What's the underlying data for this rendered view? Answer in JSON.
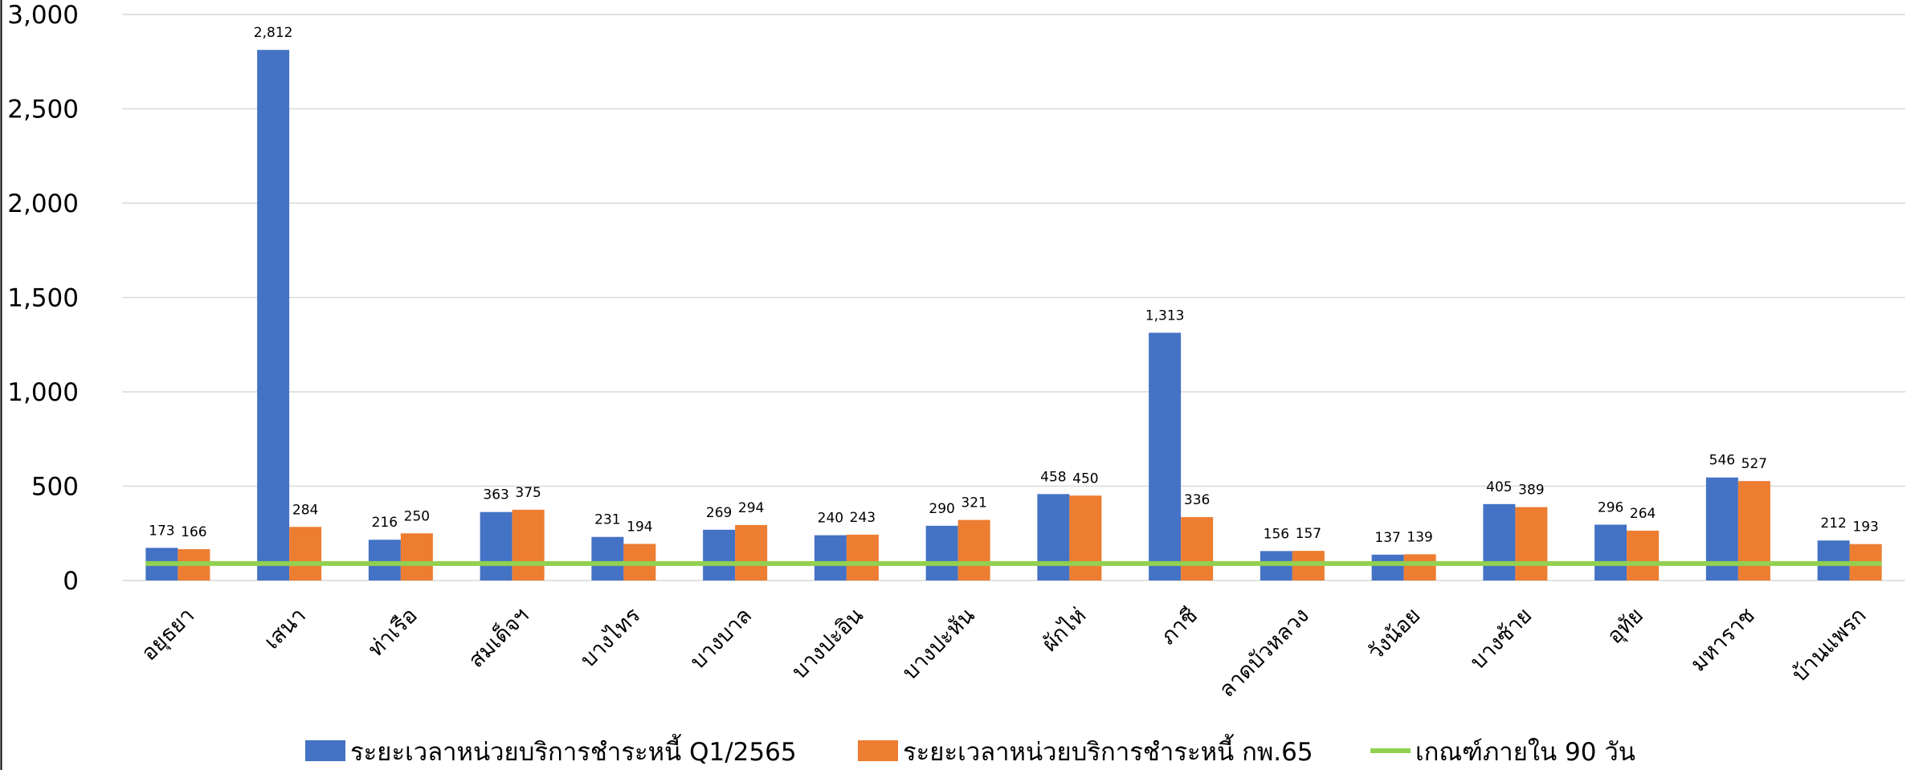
{
  "chart_data": {
    "type": "bar",
    "title": "",
    "xlabel": "",
    "ylabel": "",
    "ylim": [
      0,
      3000
    ],
    "yticks": [
      0,
      500,
      1000,
      1500,
      2000,
      2500,
      3000
    ],
    "ytick_labels": [
      "0",
      "500",
      "1,000",
      "1,500",
      "2,000",
      "2,500",
      "3,000"
    ],
    "grid": true,
    "legend_position": "bottom",
    "categories": [
      "อยุธยา",
      "เสนา",
      "ท่าเรือ",
      "สมเด็จฯ",
      "บางไทร",
      "บางบาล",
      "บางปะอิน",
      "บางปะหัน",
      "ผักไห่",
      "ภาชี",
      "ลาดบัวหลวง",
      "วังน้อย",
      "บางซ้าย",
      "อุทัย",
      "มหาราช",
      "บ้านแพรก"
    ],
    "series": [
      {
        "name": "ระยะเวลาหน่วยบริการชำระหนี้ Q1/2565",
        "color": "#4472C4",
        "values": [
          173,
          2812,
          216,
          363,
          231,
          269,
          240,
          290,
          458,
          1313,
          156,
          137,
          405,
          296,
          546,
          212
        ],
        "labels": [
          "173",
          "2,812",
          "216",
          "363",
          "231",
          "269",
          "240",
          "290",
          "458",
          "1,313",
          "156",
          "137",
          "405",
          "296",
          "546",
          "212"
        ]
      },
      {
        "name": "ระยะเวลาหน่วยบริการชำระหนี้ กพ.65",
        "color": "#ED7D31",
        "values": [
          166,
          284,
          250,
          375,
          194,
          294,
          243,
          321,
          450,
          336,
          157,
          139,
          389,
          264,
          527,
          193
        ],
        "labels": [
          "166",
          "284",
          "250",
          "375",
          "194",
          "294",
          "243",
          "321",
          "450",
          "336",
          "157",
          "139",
          "389",
          "264",
          "527",
          "193"
        ]
      }
    ],
    "reference_line": {
      "name": "เกณฑ์ภายใน 90 วัน",
      "value": 90,
      "color": "#92D050"
    },
    "gridline_color": "#D9D9D9"
  }
}
